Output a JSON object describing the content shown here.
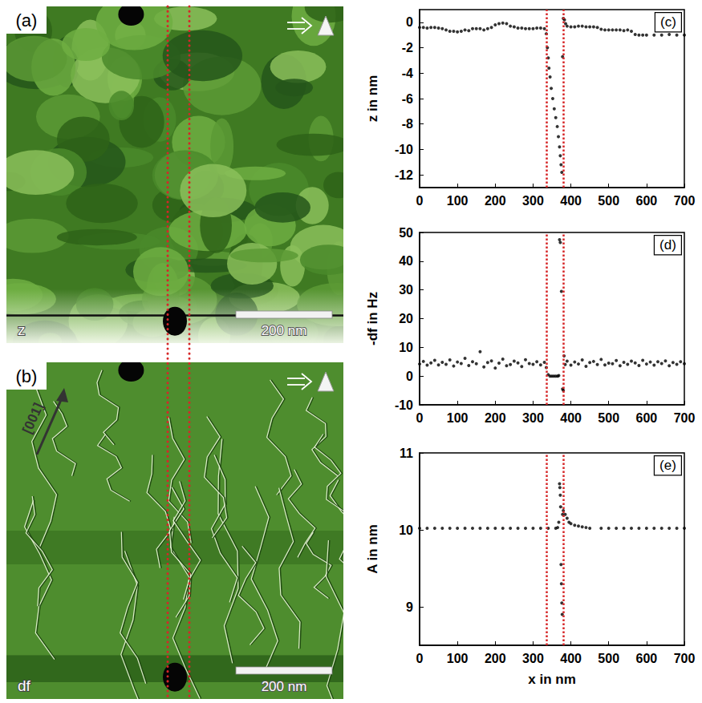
{
  "images": [
    {
      "label": "(a)",
      "channel": "z",
      "scale_bar": "200 nm",
      "scale_bar_length": 200,
      "width_nm": 700
    },
    {
      "label": "(b)",
      "channel": "df",
      "scale_bar": "200 nm",
      "scale_bar_length": 200,
      "width_nm": 700,
      "direction_label": "[001]"
    }
  ],
  "reference_lines": {
    "x": [
      335,
      380
    ],
    "color": "#d62728",
    "line_style": "dotted"
  },
  "chart_data": [
    {
      "type": "scatter",
      "label": "(c)",
      "ylabel": "z in nm",
      "x": [
        0,
        10,
        20,
        30,
        40,
        50,
        60,
        70,
        80,
        90,
        100,
        110,
        120,
        130,
        140,
        150,
        160,
        170,
        180,
        190,
        200,
        210,
        220,
        230,
        240,
        250,
        260,
        270,
        280,
        290,
        300,
        310,
        320,
        330,
        335,
        338,
        340,
        342,
        345,
        348,
        352,
        356,
        360,
        364,
        367,
        370,
        372,
        374,
        376,
        378,
        380,
        383,
        386,
        390,
        400,
        410,
        420,
        430,
        440,
        450,
        460,
        470,
        480,
        490,
        500,
        510,
        520,
        530,
        540,
        550,
        560,
        570,
        580,
        590,
        600,
        620,
        640,
        660,
        680,
        700
      ],
      "values": [
        -0.4,
        -0.4,
        -0.45,
        -0.4,
        -0.4,
        -0.45,
        -0.5,
        -0.6,
        -0.7,
        -0.7,
        -0.75,
        -0.7,
        -0.6,
        -0.65,
        -0.5,
        -0.5,
        -0.5,
        -0.6,
        -0.5,
        -0.4,
        -0.2,
        -0.1,
        -0.05,
        -0.1,
        -0.3,
        -0.35,
        -0.45,
        -0.45,
        -0.5,
        -0.5,
        -0.5,
        -0.45,
        -0.45,
        -0.5,
        -0.9,
        -2.0,
        -2.8,
        -3.6,
        -4.3,
        -5.2,
        -6.0,
        -6.8,
        -7.5,
        -8.2,
        -9.0,
        -9.8,
        -10.5,
        -11.2,
        -11.8,
        -2.7,
        0.3,
        0.2,
        -0.1,
        -0.3,
        -0.35,
        -0.35,
        -0.3,
        -0.3,
        -0.35,
        -0.35,
        -0.35,
        -0.4,
        -0.55,
        -0.6,
        -0.6,
        -0.6,
        -0.6,
        -0.6,
        -0.65,
        -0.6,
        -0.7,
        -0.95,
        -1.0,
        -1.0,
        -1.0,
        -1.0,
        -1.0,
        -0.95,
        -1.0,
        -1.0
      ],
      "xlim": [
        0,
        700
      ],
      "xticks": [
        0,
        100,
        200,
        300,
        400,
        500,
        600,
        700
      ],
      "ylim": [
        -13,
        1
      ],
      "yticks": [
        -12,
        -10,
        -8,
        -6,
        -4,
        -2,
        0
      ],
      "marker": "circle",
      "color": "#000000",
      "grid": false
    },
    {
      "type": "scatter",
      "label": "(d)",
      "ylabel": "-df in Hz",
      "x": [
        0,
        10,
        20,
        30,
        40,
        50,
        60,
        70,
        80,
        90,
        100,
        110,
        120,
        130,
        140,
        150,
        160,
        170,
        180,
        190,
        200,
        210,
        220,
        230,
        240,
        250,
        260,
        270,
        280,
        290,
        300,
        310,
        320,
        330,
        335,
        340,
        345,
        350,
        355,
        360,
        365,
        368,
        370,
        372,
        375,
        378,
        380,
        382,
        385,
        390,
        400,
        410,
        420,
        430,
        440,
        450,
        460,
        470,
        480,
        490,
        500,
        510,
        520,
        530,
        540,
        550,
        560,
        570,
        580,
        590,
        600,
        610,
        620,
        630,
        640,
        650,
        660,
        670,
        680,
        690,
        700
      ],
      "values": [
        4.2,
        5.1,
        3.8,
        4.6,
        5.5,
        3.9,
        4.8,
        4.1,
        5.6,
        3.5,
        4.9,
        4.4,
        6.2,
        3.7,
        5.0,
        4.3,
        8.5,
        3.2,
        4.7,
        5.3,
        2.8,
        4.5,
        5.9,
        3.6,
        4.0,
        5.2,
        4.6,
        3.3,
        5.7,
        4.4,
        4.1,
        5.0,
        3.9,
        4.8,
        3.0,
        0.5,
        0,
        0,
        0,
        0,
        0,
        0.2,
        47.5,
        46.5,
        29.5,
        -4.5,
        -5.0,
        7.0,
        4.0,
        5.2,
        3.8,
        4.9,
        4.2,
        5.6,
        3.4,
        4.7,
        5.1,
        4.0,
        5.8,
        3.9,
        4.5,
        4.3,
        5.4,
        3.6,
        4.8,
        4.1,
        5.2,
        4.6,
        3.7,
        5.5,
        4.2,
        4.9,
        3.8,
        5.0,
        4.4,
        5.3,
        3.6,
        4.7,
        4.1,
        5.0,
        4.3
      ],
      "xlim": [
        0,
        700
      ],
      "xticks": [
        0,
        100,
        200,
        300,
        400,
        500,
        600,
        700
      ],
      "ylim": [
        -10,
        50
      ],
      "yticks": [
        -10,
        0,
        10,
        20,
        30,
        40,
        50
      ],
      "marker": "circle",
      "color": "#000000",
      "grid": false
    },
    {
      "type": "scatter",
      "label": "(e)",
      "ylabel": "A in nm",
      "xlabel": "x in nm",
      "x": [
        0,
        20,
        40,
        60,
        80,
        100,
        120,
        140,
        160,
        180,
        200,
        220,
        240,
        260,
        280,
        300,
        320,
        340,
        360,
        365,
        368,
        370,
        371,
        372,
        373,
        374,
        375,
        376,
        377,
        378,
        380,
        385,
        390,
        395,
        400,
        410,
        420,
        430,
        440,
        450,
        480,
        500,
        520,
        540,
        560,
        580,
        600,
        620,
        640,
        660,
        680,
        700
      ],
      "values": [
        10.02,
        10.02,
        10.02,
        10.02,
        10.02,
        10.02,
        10.02,
        10.02,
        10.02,
        10.02,
        10.02,
        10.02,
        10.02,
        10.02,
        10.02,
        10.02,
        10.02,
        10.02,
        10.02,
        10.03,
        10.1,
        10.6,
        10.55,
        10.45,
        10.3,
        9.55,
        9.3,
        9.05,
        8.9,
        10.2,
        10.25,
        10.2,
        10.15,
        10.1,
        10.08,
        10.06,
        10.05,
        10.04,
        10.03,
        10.02,
        10.02,
        10.02,
        10.02,
        10.02,
        10.02,
        10.02,
        10.02,
        10.02,
        10.02,
        10.02,
        10.02,
        10.02
      ],
      "xlim": [
        0,
        700
      ],
      "xticks": [
        0,
        100,
        200,
        300,
        400,
        500,
        600,
        700
      ],
      "ylim": [
        8.5,
        11
      ],
      "yticks": [
        9,
        10,
        11
      ],
      "marker": "circle",
      "color": "#000000",
      "grid": false
    }
  ]
}
